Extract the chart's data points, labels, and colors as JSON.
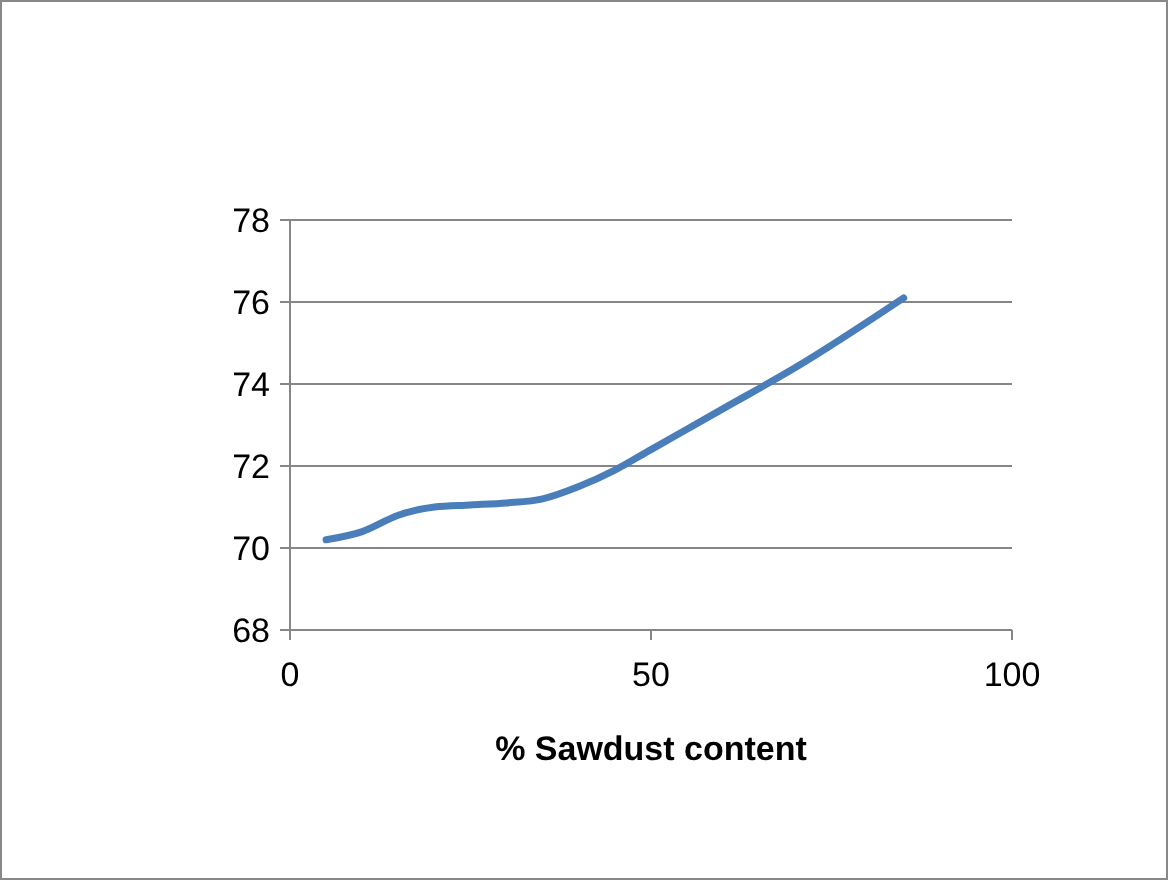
{
  "chart_data": {
    "type": "line",
    "xlabel": "% Sawdust content",
    "x": [
      5,
      10,
      15,
      20,
      25,
      30,
      35,
      40,
      45,
      50,
      60,
      70,
      85
    ],
    "series": [
      {
        "color": "#4a7ebb",
        "values": [
          70.2,
          70.4,
          70.8,
          71.0,
          71.05,
          71.1,
          71.2,
          71.5,
          71.9,
          72.4,
          73.4,
          74.4,
          76.1
        ]
      }
    ],
    "xlim": [
      0,
      100
    ],
    "xticks": [
      0,
      50,
      100
    ],
    "ylim": [
      68,
      78
    ],
    "yticks": [
      68,
      70,
      72,
      74,
      76,
      78
    ],
    "grid": "y",
    "marker": "none",
    "line_style": "solid"
  }
}
